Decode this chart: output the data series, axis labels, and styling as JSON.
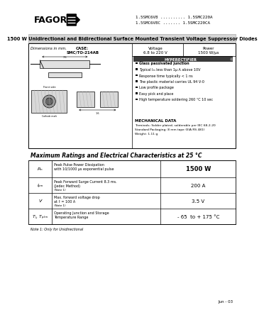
{
  "title_part1": "1.5SMC6V8 .......... 1.5SMC220A",
  "title_part2": "1.5SMC6V8C ....... 1.5SMC220CA",
  "main_title": "1500 W Unidirectional and Bidirectional Surface Mounted Transient Voltage Suppressor Diodes",
  "features": [
    "Glass passivated junction",
    "Typical Iₘ less than 1μ A above 10V",
    "Response time typically < 1 ns",
    "The plastic material carries UL 94 V-0",
    "Low profile package",
    "Easy pick and place",
    "High temperature soldering 260 °C 10 sec"
  ],
  "mech_title": "MECHANICAL DATA",
  "mech_data": "Terminals: Solder plated, solderable per IEC 68-2-20\nStandard Packaging: 8 mm tape (EIA RS 481)\nWeight: 1.11 g",
  "table_title": "Maximum Ratings and Electrical Characteristics at 25 °C",
  "row_symbols": [
    "Pₘ",
    "Iₚₘ",
    "Vⁱ",
    "Tⱼ, Tₚₜₘ"
  ],
  "row_descs": [
    [
      "Peak Pulse Power Dissipation",
      "with 10/1000 μs exponential pulse"
    ],
    [
      "Peak Forward Surge Current 8.3 ms.",
      "(Jedec Method)"
    ],
    [
      "Max. forward voltage drop",
      "at Iⁱ = 100 A"
    ],
    [
      "Operating Junction and Storage",
      "Temperature Range"
    ]
  ],
  "row_notes": [
    "",
    "(Note 1)",
    "(Note 1)",
    ""
  ],
  "row_values": [
    "1500 W",
    "200 A",
    "3.5 V",
    "- 65  to + 175 °C"
  ],
  "row_bold": [
    true,
    false,
    false,
    false
  ],
  "note": "Note 1: Only for Unidirectional",
  "date": "Jun - 03",
  "bg_color": "#ffffff"
}
